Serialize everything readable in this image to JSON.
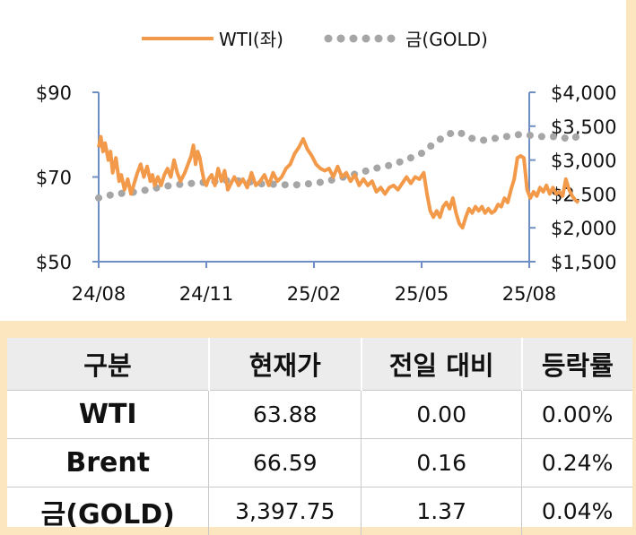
{
  "chart_data": {
    "type": "line",
    "legend_position": "top",
    "x_ticks": [
      "24/08",
      "24/11",
      "25/02",
      "25/05",
      "25/08"
    ],
    "left_axis": {
      "ticks": [
        "$90",
        "$70",
        "$50"
      ],
      "range": [
        50,
        90
      ]
    },
    "right_axis": {
      "ticks": [
        "$4,000",
        "$3,500",
        "$3,000",
        "$2,500",
        "$2,000",
        "$1,500"
      ],
      "range": [
        1500,
        4000
      ]
    },
    "series": [
      {
        "name": "WTI(좌)",
        "axis": "left",
        "style": "solid",
        "color": "#f39a4a",
        "points": [
          [
            0,
            77
          ],
          [
            0.02,
            79.5
          ],
          [
            0.04,
            76
          ],
          [
            0.06,
            78
          ],
          [
            0.09,
            74
          ],
          [
            0.11,
            76
          ],
          [
            0.13,
            71
          ],
          [
            0.16,
            74.5
          ],
          [
            0.19,
            69
          ],
          [
            0.21,
            70.5
          ],
          [
            0.24,
            67
          ],
          [
            0.27,
            69.5
          ],
          [
            0.3,
            66
          ],
          [
            0.33,
            68.5
          ],
          [
            0.36,
            71
          ],
          [
            0.39,
            73
          ],
          [
            0.42,
            70
          ],
          [
            0.45,
            72.5
          ],
          [
            0.48,
            69
          ],
          [
            0.5,
            70.5
          ],
          [
            0.52,
            68
          ],
          [
            0.55,
            70
          ],
          [
            0.58,
            68
          ],
          [
            0.61,
            70.5
          ],
          [
            0.64,
            72
          ],
          [
            0.67,
            70
          ],
          [
            0.7,
            74
          ],
          [
            0.73,
            71
          ],
          [
            0.76,
            69
          ],
          [
            0.8,
            71
          ],
          [
            0.83,
            73
          ],
          [
            0.86,
            75
          ],
          [
            0.88,
            77.5
          ],
          [
            0.9,
            73
          ],
          [
            0.92,
            76
          ],
          [
            0.94,
            74.5
          ],
          [
            0.96,
            71.5
          ],
          [
            0.98,
            69
          ],
          [
            1,
            68
          ],
          [
            1.02,
            69.5
          ],
          [
            1.05,
            70.5
          ],
          [
            1.08,
            68
          ],
          [
            1.11,
            72
          ],
          [
            1.14,
            69
          ],
          [
            1.17,
            71.5
          ],
          [
            1.2,
            67
          ],
          [
            1.23,
            68.5
          ],
          [
            1.26,
            70
          ],
          [
            1.3,
            68
          ],
          [
            1.34,
            69.5
          ],
          [
            1.38,
            67.5
          ],
          [
            1.42,
            71
          ],
          [
            1.46,
            68
          ],
          [
            1.5,
            69
          ],
          [
            1.54,
            70.5
          ],
          [
            1.58,
            68
          ],
          [
            1.62,
            71
          ],
          [
            1.66,
            69
          ],
          [
            1.7,
            70
          ],
          [
            1.74,
            72
          ],
          [
            1.78,
            73
          ],
          [
            1.82,
            75.5
          ],
          [
            1.86,
            77
          ],
          [
            1.9,
            79
          ],
          [
            1.94,
            76.5
          ],
          [
            1.98,
            75
          ],
          [
            2.02,
            73
          ],
          [
            2.06,
            72
          ],
          [
            2.1,
            71.5
          ],
          [
            2.14,
            72
          ],
          [
            2.18,
            70
          ],
          [
            2.22,
            72.5
          ],
          [
            2.26,
            70
          ],
          [
            2.3,
            71
          ],
          [
            2.34,
            69
          ],
          [
            2.38,
            70.5
          ],
          [
            2.42,
            68
          ],
          [
            2.46,
            69.5
          ],
          [
            2.5,
            68
          ],
          [
            2.54,
            69
          ],
          [
            2.58,
            66.5
          ],
          [
            2.62,
            67.5
          ],
          [
            2.66,
            66
          ],
          [
            2.7,
            67.5
          ],
          [
            2.74,
            68
          ],
          [
            2.78,
            67
          ],
          [
            2.82,
            68.5
          ],
          [
            2.86,
            70
          ],
          [
            2.9,
            68.5
          ],
          [
            2.94,
            70
          ],
          [
            2.98,
            69.5
          ],
          [
            3.02,
            71
          ],
          [
            3.05,
            66
          ],
          [
            3.08,
            62
          ],
          [
            3.11,
            60.5
          ],
          [
            3.14,
            62
          ],
          [
            3.17,
            60.5
          ],
          [
            3.2,
            63
          ],
          [
            3.23,
            64
          ],
          [
            3.26,
            62.5
          ],
          [
            3.29,
            65
          ],
          [
            3.32,
            61.5
          ],
          [
            3.35,
            59
          ],
          [
            3.38,
            58
          ],
          [
            3.41,
            60.5
          ],
          [
            3.44,
            62.5
          ],
          [
            3.47,
            61.5
          ],
          [
            3.5,
            63
          ],
          [
            3.53,
            62
          ],
          [
            3.56,
            63
          ],
          [
            3.59,
            61.5
          ],
          [
            3.62,
            62.5
          ],
          [
            3.65,
            61.5
          ],
          [
            3.68,
            62
          ],
          [
            3.71,
            63.5
          ],
          [
            3.74,
            63
          ],
          [
            3.77,
            65
          ],
          [
            3.8,
            64
          ],
          [
            3.83,
            67
          ],
          [
            3.86,
            69.5
          ],
          [
            3.89,
            74.5
          ],
          [
            3.92,
            75
          ],
          [
            3.95,
            74.5
          ],
          [
            3.98,
            67
          ],
          [
            4.01,
            65
          ],
          [
            4.04,
            66.5
          ],
          [
            4.07,
            65.5
          ],
          [
            4.1,
            67.5
          ],
          [
            4.13,
            66.5
          ],
          [
            4.16,
            68
          ],
          [
            4.19,
            66
          ],
          [
            4.22,
            67.5
          ],
          [
            4.25,
            66
          ],
          [
            4.28,
            66.5
          ],
          [
            4.31,
            65.5
          ],
          [
            4.34,
            69.5
          ],
          [
            4.37,
            67
          ],
          [
            4.4,
            65.5
          ],
          [
            4.43,
            64.5
          ],
          [
            4.46,
            64
          ]
        ]
      },
      {
        "name": "금(GOLD)",
        "axis": "right",
        "style": "dotted",
        "color": "#a6a6a6",
        "points": [
          [
            0,
            2440
          ],
          [
            0.15,
            2500
          ],
          [
            0.3,
            2520
          ],
          [
            0.45,
            2560
          ],
          [
            0.6,
            2610
          ],
          [
            0.75,
            2640
          ],
          [
            0.9,
            2660
          ],
          [
            1.05,
            2680
          ],
          [
            1.2,
            2700
          ],
          [
            1.35,
            2690
          ],
          [
            1.5,
            2650
          ],
          [
            1.65,
            2640
          ],
          [
            1.8,
            2630
          ],
          [
            1.95,
            2650
          ],
          [
            2.1,
            2680
          ],
          [
            2.25,
            2740
          ],
          [
            2.4,
            2800
          ],
          [
            2.55,
            2870
          ],
          [
            2.7,
            2920
          ],
          [
            2.85,
            3000
          ],
          [
            3.0,
            3100
          ],
          [
            3.12,
            3250
          ],
          [
            3.24,
            3380
          ],
          [
            3.34,
            3420
          ],
          [
            3.44,
            3330
          ],
          [
            3.56,
            3290
          ],
          [
            3.68,
            3320
          ],
          [
            3.8,
            3350
          ],
          [
            3.92,
            3380
          ],
          [
            4.04,
            3360
          ],
          [
            4.16,
            3340
          ],
          [
            4.28,
            3350
          ],
          [
            4.38,
            3300
          ],
          [
            4.46,
            3360
          ]
        ]
      }
    ]
  },
  "table": {
    "headers": [
      "구분",
      "현재가",
      "전일 대비",
      "등락률"
    ],
    "rows": [
      {
        "name": "WTI",
        "price": "63.88",
        "change": "0.00",
        "rate": "0.00%"
      },
      {
        "name": "Brent",
        "price": "66.59",
        "change": "0.16",
        "rate": "0.24%"
      },
      {
        "name": "금(GOLD)",
        "price": "3,397.75",
        "change": "1.37",
        "rate": "0.04%"
      }
    ]
  }
}
